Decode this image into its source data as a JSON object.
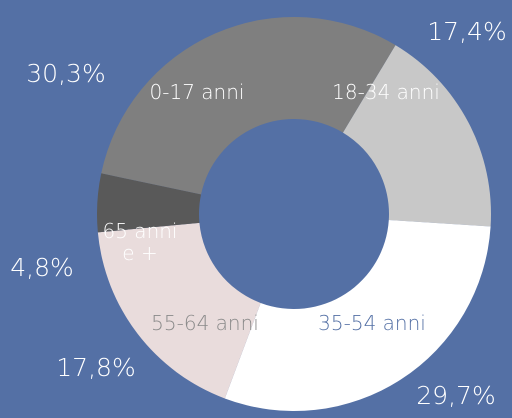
{
  "chart_data": {
    "type": "pie",
    "variant": "donut",
    "title": "",
    "categories": [
      "18-34 anni",
      "35-54 anni",
      "55-64 anni",
      "65 anni e +",
      "0-17 anni"
    ],
    "values": [
      17.4,
      29.7,
      17.8,
      4.8,
      30.3
    ],
    "value_labels": [
      "17,4%",
      "29,7%",
      "17,8%",
      "4,8%",
      "30,3%"
    ],
    "colors": [
      "#c8c8c8",
      "#ffffff",
      "#e9dcdc",
      "#595959",
      "#7f7f7f"
    ],
    "label_colors": [
      "#ffffff",
      "#5470a5",
      "#8a8a8a",
      "#ffffff",
      "#ffffff"
    ],
    "legend": "none",
    "background": "#5470a5"
  }
}
